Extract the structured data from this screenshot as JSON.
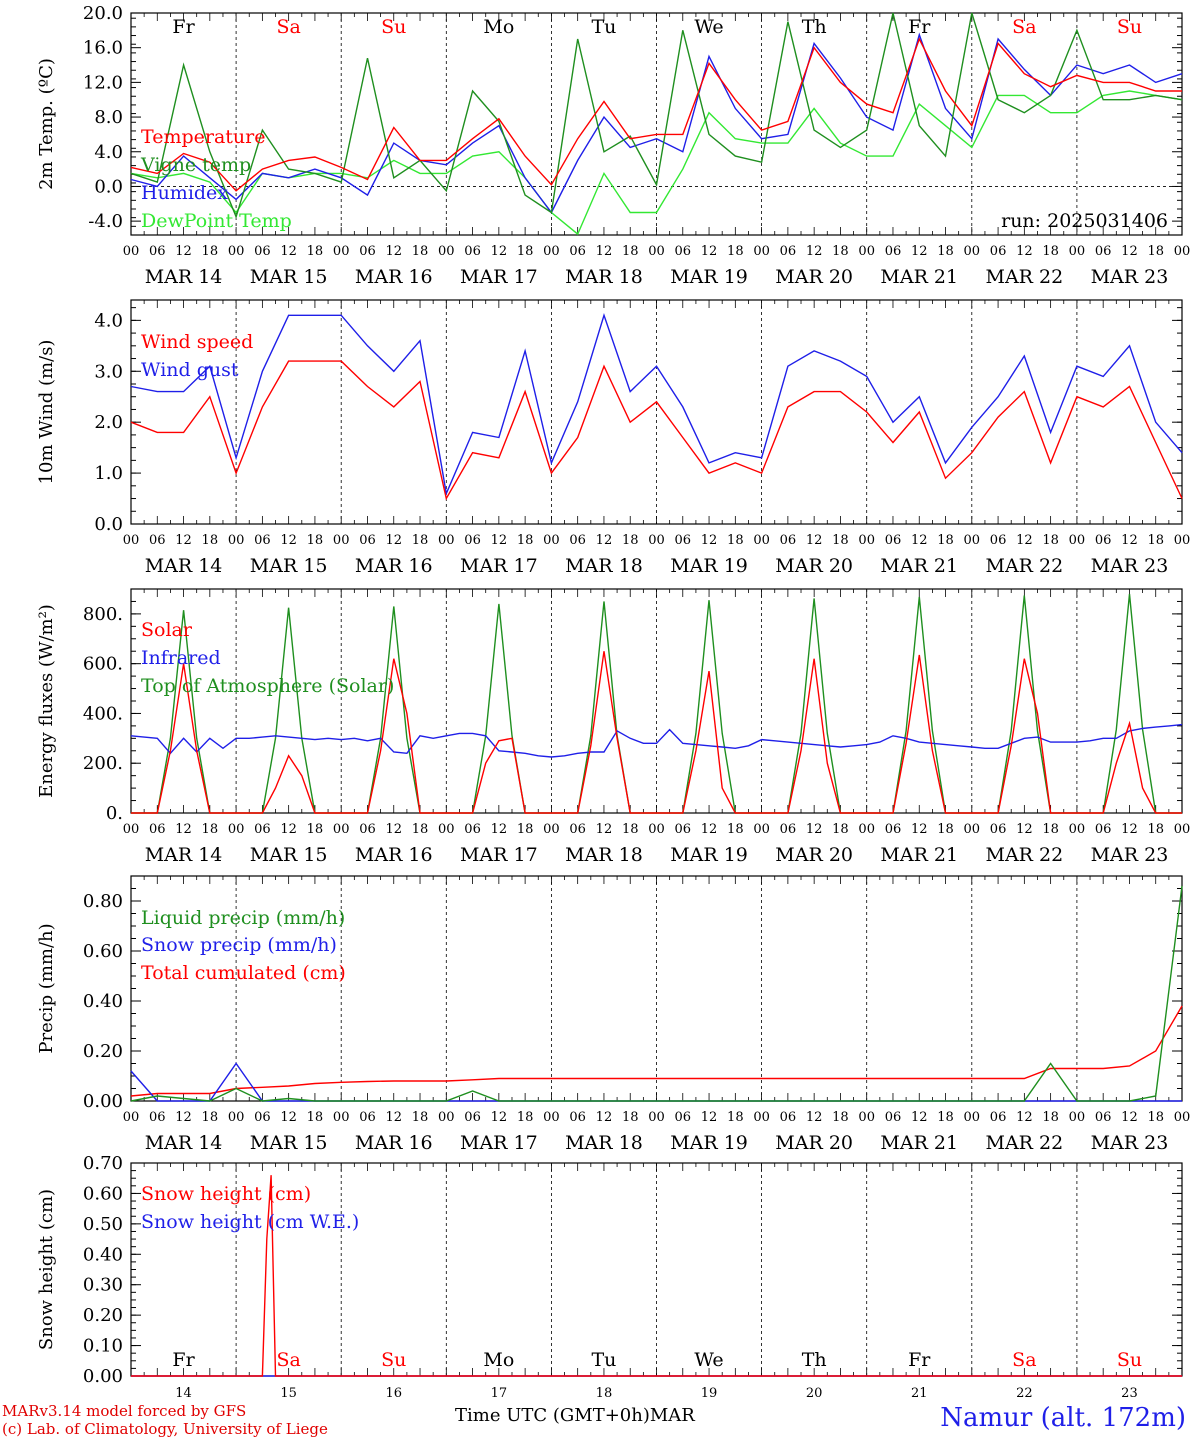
{
  "run_label": "run: 2025031406",
  "days": [
    "Fr",
    "Sa",
    "Su",
    "Mo",
    "Tu",
    "We",
    "Th",
    "Fr",
    "Sa",
    "Su"
  ],
  "day_colors": [
    "#000000",
    "#ff0000",
    "#ff0000",
    "#000000",
    "#000000",
    "#000000",
    "#000000",
    "#000000",
    "#ff0000",
    "#ff0000"
  ],
  "dates": [
    "MAR 14",
    "MAR 15",
    "MAR 16",
    "MAR 17",
    "MAR 18",
    "MAR 19",
    "MAR 20",
    "MAR 21",
    "MAR 22",
    "MAR 23"
  ],
  "day_numbers": [
    "14",
    "15",
    "16",
    "17",
    "18",
    "19",
    "20",
    "21",
    "22",
    "23"
  ],
  "hour_ticks": [
    "00",
    "06",
    "12",
    "18"
  ],
  "hour_end": "00",
  "footer": {
    "model": "MARv3.14 model forced by GFS",
    "copyright": "(c) Lab. of Climatology, University of Liege",
    "x_axis_label": "Time UTC (GMT+0h)",
    "month": "MAR",
    "site": "Namur (alt. 172m)"
  },
  "colors": {
    "red": "#ff0000",
    "green": "#1f8f1f",
    "blue": "#1f1fe8",
    "lightgreen": "#33e833"
  },
  "chart_data": [
    {
      "type": "line",
      "ylabel": "2m Temp. (ºC)",
      "ylim": [
        -5.6,
        20.0
      ],
      "yticks": [
        "20.0",
        "16.0",
        "12.0",
        "8.0",
        "4.0",
        "0.0",
        "-4.0"
      ],
      "x_hours": [
        0,
        6,
        12,
        18,
        24,
        30,
        36,
        42,
        48,
        54,
        60,
        66,
        72,
        78,
        84,
        90,
        96,
        102,
        108,
        114,
        120,
        126,
        132,
        138,
        144,
        150,
        156,
        162,
        168,
        174,
        180,
        186,
        192,
        198,
        204,
        210,
        216,
        222,
        228,
        234,
        240
      ],
      "series": [
        {
          "name": "Temperature",
          "color": "red",
          "values": [
            2.2,
            1.5,
            3.8,
            2.8,
            -0.5,
            2.0,
            3.0,
            3.4,
            2.2,
            0.8,
            6.8,
            3.0,
            3.0,
            5.5,
            7.8,
            3.5,
            0.2,
            5.5,
            9.8,
            5.5,
            6.0,
            6.0,
            14.2,
            10.0,
            6.5,
            7.5,
            16.0,
            12.0,
            9.5,
            8.5,
            17.0,
            11.0,
            7.0,
            16.5,
            13.0,
            11.5,
            12.8,
            12.0,
            12.0,
            11.0,
            11.0
          ]
        },
        {
          "name": "Vigne temp",
          "color": "green",
          "values": [
            1.5,
            0.5,
            14.0,
            4.0,
            -3.5,
            6.5,
            2.0,
            1.5,
            0.5,
            14.8,
            1.0,
            3.0,
            -0.5,
            11.0,
            7.5,
            -1.0,
            -3.0,
            17.0,
            4.0,
            5.8,
            0.2,
            18.0,
            6.0,
            3.5,
            2.8,
            19.0,
            6.5,
            4.5,
            6.5,
            20.0,
            7.0,
            3.5,
            20.0,
            10.0,
            8.5,
            10.5,
            18.0,
            10.0,
            10.0,
            10.5,
            10.0
          ]
        },
        {
          "name": "Humidex",
          "color": "blue",
          "values": [
            0.8,
            0.0,
            3.5,
            1.0,
            -1.5,
            1.5,
            1.0,
            2.0,
            1.0,
            -1.0,
            5.0,
            3.0,
            2.5,
            5.0,
            7.0,
            1.0,
            -3.0,
            3.0,
            8.0,
            4.5,
            5.5,
            4.0,
            15.0,
            9.0,
            5.5,
            6.0,
            16.5,
            12.5,
            8.0,
            6.5,
            17.5,
            9.0,
            5.5,
            17.0,
            13.5,
            10.5,
            14.0,
            13.0,
            14.0,
            12.0,
            13.0
          ]
        },
        {
          "name": "DewPoint Temp",
          "color": "lightgreen",
          "values": [
            1.5,
            1.0,
            1.5,
            0.5,
            -3.0,
            1.5,
            1.0,
            1.5,
            1.5,
            1.0,
            3.0,
            1.5,
            1.5,
            3.5,
            4.0,
            1.0,
            -3.0,
            -5.5,
            1.5,
            -3.0,
            -3.0,
            2.0,
            8.5,
            5.5,
            5.0,
            5.0,
            9.0,
            5.0,
            3.5,
            3.5,
            9.5,
            7.0,
            4.5,
            10.5,
            10.5,
            8.5,
            8.5,
            10.5,
            11.0,
            10.5,
            10.0
          ]
        }
      ]
    },
    {
      "type": "line",
      "ylabel": "10m Wind (m/s)",
      "ylim": [
        0.0,
        4.4
      ],
      "yticks": [
        "4.0",
        "3.0",
        "2.0",
        "1.0",
        "0.0"
      ],
      "x_hours": [
        0,
        6,
        12,
        18,
        24,
        30,
        36,
        42,
        48,
        54,
        60,
        66,
        72,
        78,
        84,
        90,
        96,
        102,
        108,
        114,
        120,
        126,
        132,
        138,
        144,
        150,
        156,
        162,
        168,
        174,
        180,
        186,
        192,
        198,
        204,
        210,
        216,
        222,
        228,
        234,
        240
      ],
      "series": [
        {
          "name": "Wind speed",
          "color": "red",
          "values": [
            2.0,
            1.8,
            1.8,
            2.5,
            1.0,
            2.3,
            3.2,
            3.2,
            3.2,
            2.7,
            2.3,
            2.8,
            0.5,
            1.4,
            1.3,
            2.6,
            1.0,
            1.7,
            3.1,
            2.0,
            2.4,
            1.7,
            1.0,
            1.2,
            1.0,
            2.3,
            2.6,
            2.6,
            2.2,
            1.6,
            2.2,
            0.9,
            1.4,
            2.1,
            2.6,
            1.2,
            2.5,
            2.3,
            2.7,
            1.6,
            0.5
          ]
        },
        {
          "name": "Wind gust",
          "color": "blue",
          "values": [
            2.7,
            2.6,
            2.6,
            3.1,
            1.3,
            3.0,
            4.1,
            4.1,
            4.1,
            3.5,
            3.0,
            3.6,
            0.6,
            1.8,
            1.7,
            3.4,
            1.2,
            2.4,
            4.1,
            2.6,
            3.1,
            2.3,
            1.2,
            1.4,
            1.3,
            3.1,
            3.4,
            3.2,
            2.9,
            2.0,
            2.5,
            1.2,
            1.9,
            2.5,
            3.3,
            1.8,
            3.1,
            2.9,
            3.5,
            2.0,
            1.4
          ]
        }
      ]
    },
    {
      "type": "line",
      "ylabel": "Energy fluxes (W/m²)",
      "ylim": [
        0,
        900
      ],
      "yticks": [
        "800.",
        "600.",
        "400.",
        "200.",
        "0."
      ],
      "x_hours": [
        0,
        3,
        6,
        9,
        12,
        15,
        18,
        21,
        24,
        27,
        30,
        33,
        36,
        39,
        42,
        45,
        48,
        51,
        54,
        57,
        60,
        63,
        66,
        69,
        72,
        75,
        78,
        81,
        84,
        87,
        90,
        93,
        96,
        99,
        102,
        105,
        108,
        111,
        114,
        117,
        120,
        123,
        126,
        129,
        132,
        135,
        138,
        141,
        144,
        147,
        150,
        153,
        156,
        159,
        162,
        165,
        168,
        171,
        174,
        177,
        180,
        183,
        186,
        189,
        192,
        195,
        198,
        201,
        204,
        207,
        210,
        213,
        216,
        219,
        222,
        225,
        228,
        231,
        234,
        237,
        240
      ],
      "series": [
        {
          "name": "Solar",
          "color": "red",
          "values": [
            0,
            0,
            0,
            250,
            600,
            250,
            0,
            0,
            0,
            0,
            0,
            100,
            230,
            150,
            0,
            0,
            0,
            0,
            0,
            250,
            620,
            400,
            0,
            0,
            0,
            0,
            0,
            200,
            290,
            300,
            0,
            0,
            0,
            0,
            0,
            270,
            650,
            300,
            0,
            0,
            0,
            0,
            0,
            250,
            570,
            100,
            0,
            0,
            0,
            0,
            0,
            250,
            620,
            200,
            0,
            0,
            0,
            0,
            0,
            280,
            635,
            250,
            0,
            0,
            0,
            0,
            0,
            270,
            620,
            400,
            0,
            0,
            0,
            0,
            0,
            200,
            360,
            100,
            0,
            0,
            0
          ]
        },
        {
          "name": "Infrared",
          "color": "blue",
          "values": [
            310,
            305,
            300,
            240,
            300,
            245,
            300,
            260,
            300,
            300,
            305,
            310,
            305,
            300,
            295,
            300,
            295,
            300,
            290,
            300,
            245,
            240,
            310,
            300,
            310,
            320,
            320,
            310,
            250,
            245,
            240,
            230,
            225,
            230,
            240,
            245,
            245,
            330,
            300,
            280,
            280,
            335,
            280,
            275,
            270,
            265,
            260,
            270,
            295,
            290,
            285,
            280,
            275,
            270,
            265,
            270,
            275,
            285,
            310,
            300,
            285,
            280,
            275,
            270,
            265,
            260,
            260,
            280,
            300,
            305,
            285,
            285,
            285,
            290,
            300,
            300,
            330,
            340,
            345,
            350,
            355
          ]
        },
        {
          "name": "Top of Atmosphere (Solar)",
          "color": "green",
          "values": [
            0,
            0,
            0,
            300,
            815,
            300,
            0,
            0,
            0,
            0,
            0,
            300,
            825,
            300,
            0,
            0,
            0,
            0,
            0,
            300,
            830,
            300,
            0,
            0,
            0,
            0,
            0,
            310,
            840,
            310,
            0,
            0,
            0,
            0,
            0,
            310,
            850,
            310,
            0,
            0,
            0,
            0,
            0,
            320,
            855,
            320,
            0,
            0,
            0,
            0,
            0,
            320,
            862,
            320,
            0,
            0,
            0,
            0,
            0,
            330,
            868,
            330,
            0,
            0,
            0,
            0,
            0,
            330,
            874,
            330,
            0,
            0,
            0,
            0,
            0,
            335,
            880,
            335,
            0,
            0,
            0
          ]
        }
      ]
    },
    {
      "type": "line",
      "ylabel": "Precip (mm/h)",
      "ylim": [
        0.0,
        0.9
      ],
      "yticks": [
        "0.80",
        "0.60",
        "0.40",
        "0.20",
        "0.00"
      ],
      "x_hours": [
        0,
        6,
        12,
        18,
        24,
        30,
        36,
        42,
        48,
        54,
        60,
        66,
        72,
        78,
        84,
        90,
        96,
        102,
        108,
        114,
        120,
        126,
        132,
        138,
        144,
        150,
        156,
        162,
        168,
        174,
        180,
        186,
        192,
        198,
        204,
        210,
        216,
        222,
        228,
        234,
        240
      ],
      "series": [
        {
          "name": "Liquid precip (mm/h)",
          "color": "green",
          "values": [
            0.0,
            0.02,
            0.01,
            0.0,
            0.05,
            0.0,
            0.01,
            0.0,
            0.0,
            0.0,
            0.0,
            0.0,
            0.0,
            0.04,
            0.0,
            0.0,
            0.0,
            0.0,
            0.0,
            0.0,
            0.0,
            0.0,
            0.0,
            0.0,
            0.0,
            0.0,
            0.0,
            0.0,
            0.0,
            0.0,
            0.0,
            0.0,
            0.0,
            0.0,
            0.0,
            0.15,
            0.0,
            0.0,
            0.0,
            0.02,
            0.86
          ]
        },
        {
          "name": "Snow precip (mm/h)",
          "color": "blue",
          "values": [
            0.12,
            0.0,
            0.0,
            0.0,
            0.15,
            0.0,
            0.0,
            0.0,
            0.0,
            0.0,
            0.0,
            0.0,
            0.0,
            0.0,
            0.0,
            0.0,
            0.0,
            0.0,
            0.0,
            0.0,
            0.0,
            0.0,
            0.0,
            0.0,
            0.0,
            0.0,
            0.0,
            0.0,
            0.0,
            0.0,
            0.0,
            0.0,
            0.0,
            0.0,
            0.0,
            0.0,
            0.0,
            0.0,
            0.0,
            0.0,
            0.0
          ]
        },
        {
          "name": "Total cumulated (cm)",
          "color": "red",
          "values": [
            0.02,
            0.03,
            0.03,
            0.03,
            0.05,
            0.055,
            0.06,
            0.07,
            0.075,
            0.078,
            0.08,
            0.08,
            0.08,
            0.085,
            0.09,
            0.09,
            0.09,
            0.09,
            0.09,
            0.09,
            0.09,
            0.09,
            0.09,
            0.09,
            0.09,
            0.09,
            0.09,
            0.09,
            0.09,
            0.09,
            0.09,
            0.09,
            0.09,
            0.09,
            0.09,
            0.13,
            0.13,
            0.13,
            0.14,
            0.2,
            0.38
          ]
        }
      ]
    },
    {
      "type": "line",
      "ylabel": "Snow height (cm)",
      "ylim": [
        0.0,
        0.7
      ],
      "yticks": [
        "0.70",
        "0.60",
        "0.50",
        "0.40",
        "0.30",
        "0.20",
        "0.10",
        "0.00"
      ],
      "x_hours": [
        0,
        6,
        12,
        18,
        24,
        30,
        31,
        32,
        33,
        36,
        42,
        48,
        60,
        72,
        96,
        120,
        144,
        168,
        192,
        216,
        240
      ],
      "series": [
        {
          "name": "Snow height (cm)",
          "color": "red",
          "values": [
            0,
            0,
            0,
            0,
            0,
            0,
            0.45,
            0.66,
            0,
            0,
            0,
            0,
            0,
            0,
            0,
            0,
            0,
            0,
            0,
            0,
            0
          ]
        },
        {
          "name": "Snow height (cm W.E.)",
          "color": "blue",
          "values": [
            0,
            0,
            0,
            0,
            0,
            0,
            0,
            0,
            0,
            0,
            0,
            0,
            0,
            0,
            0,
            0,
            0,
            0,
            0,
            0,
            0
          ]
        }
      ]
    }
  ]
}
